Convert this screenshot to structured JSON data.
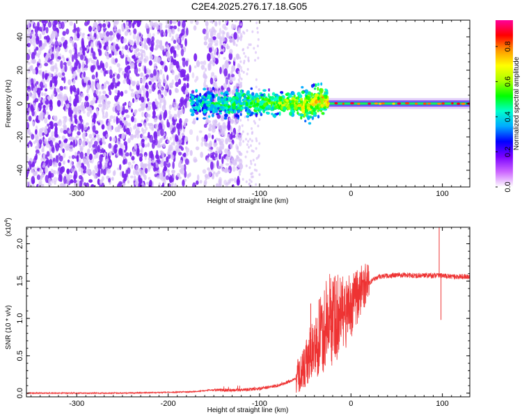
{
  "title": "C2E4.2025.276.17.18.G05",
  "colors": {
    "background": "#ffffff",
    "snr_line": "#ee3333",
    "spectrogram_noise": "#7a22ee",
    "spectrogram_light": "#d8c2f6"
  },
  "colorbar": {
    "label": "Normalized spectral amplitude",
    "range": [
      0,
      0.95
    ],
    "ticks": [
      {
        "label": "0.0",
        "value": 0.0
      },
      {
        "label": "0.2",
        "value": 0.2
      },
      {
        "label": "0.4",
        "value": 0.4
      },
      {
        "label": "0.6",
        "value": 0.6
      },
      {
        "label": "0.8",
        "value": 0.8
      }
    ],
    "stops": [
      "#ffffff",
      "#cc66ff",
      "#7a00ff",
      "#0000ff",
      "#00aaff",
      "#00ffcc",
      "#00ff00",
      "#aaff00",
      "#ffff00",
      "#ff9900",
      "#ff0000",
      "#ff0099"
    ]
  },
  "chart_data": [
    {
      "type": "heatmap",
      "name": "spectrogram",
      "xlabel": "Height of straight line (km)",
      "ylabel": "Frequency (Hz)",
      "xlim": [
        -355,
        130
      ],
      "ylim": [
        -50,
        50
      ],
      "xticks": [
        {
          "label": "-300",
          "value": -300
        },
        {
          "label": "-200",
          "value": -200
        },
        {
          "label": "-100",
          "value": -100
        },
        {
          "label": "0",
          "value": 0
        },
        {
          "label": "100",
          "value": 100
        }
      ],
      "yticks": [
        {
          "label": "-40",
          "value": -40
        },
        {
          "label": "-20",
          "value": -20
        },
        {
          "label": "0",
          "value": 0
        },
        {
          "label": "20",
          "value": 20
        },
        {
          "label": "40",
          "value": 40
        }
      ],
      "features": {
        "noise_region_km": [
          -355,
          -120
        ],
        "noise_gap_km": [
          -178,
          -160
        ],
        "transition_km": [
          -175,
          -25
        ],
        "carrier_from_km": -25,
        "carrier_freq_hz": 0,
        "carrier_amplitude": 0.85
      }
    },
    {
      "type": "line",
      "name": "snr",
      "xlabel": "Height of straight line (km)",
      "ylabel": "SNR (10 * v/v)",
      "exponent_label": "(x10",
      "exponent_sup": "4",
      "exponent_close": ")",
      "xlim": [
        -355,
        130
      ],
      "ylim": [
        -0.05,
        2.22
      ],
      "xticks": [
        {
          "label": "-300",
          "value": -300
        },
        {
          "label": "-200",
          "value": -200
        },
        {
          "label": "-100",
          "value": -100
        },
        {
          "label": "0",
          "value": 0
        },
        {
          "label": "100",
          "value": 100
        }
      ],
      "yticks": [
        {
          "label": "0.0",
          "value": 0.0
        },
        {
          "label": "0.5",
          "value": 0.5
        },
        {
          "label": "1.0",
          "value": 1.0
        },
        {
          "label": "1.5",
          "value": 1.5
        },
        {
          "label": "2.0",
          "value": 2.0
        }
      ],
      "series": [
        {
          "name": "SNR",
          "x": [
            -355,
            -300,
            -250,
            -200,
            -170,
            -155,
            -140,
            -120,
            -100,
            -80,
            -70,
            -60,
            -55,
            -50,
            -45,
            -40,
            -35,
            -30,
            -25,
            -20,
            -15,
            -10,
            -5,
            0,
            5,
            10,
            15,
            20,
            25,
            30,
            40,
            50,
            60,
            70,
            80,
            90,
            95,
            98,
            100,
            110,
            120,
            130
          ],
          "y": [
            0.0,
            0.0,
            0.0,
            0.01,
            0.02,
            0.04,
            0.04,
            0.04,
            0.06,
            0.1,
            0.14,
            0.2,
            0.26,
            0.36,
            0.5,
            0.62,
            0.74,
            0.86,
            0.94,
            1.0,
            1.03,
            1.05,
            1.08,
            1.15,
            1.26,
            1.36,
            1.44,
            1.48,
            1.52,
            1.56,
            1.57,
            1.58,
            1.58,
            1.57,
            1.58,
            1.57,
            1.58,
            1.58,
            1.57,
            1.56,
            1.56,
            1.56
          ]
        }
      ],
      "spikes": [
        {
          "x": 96.5,
          "y": 2.22
        },
        {
          "x": 98.5,
          "y": 0.98
        },
        {
          "x": -44,
          "y": 1.2
        },
        {
          "x": -22,
          "y": 1.28
        },
        {
          "x": -12,
          "y": 1.24
        }
      ]
    }
  ]
}
